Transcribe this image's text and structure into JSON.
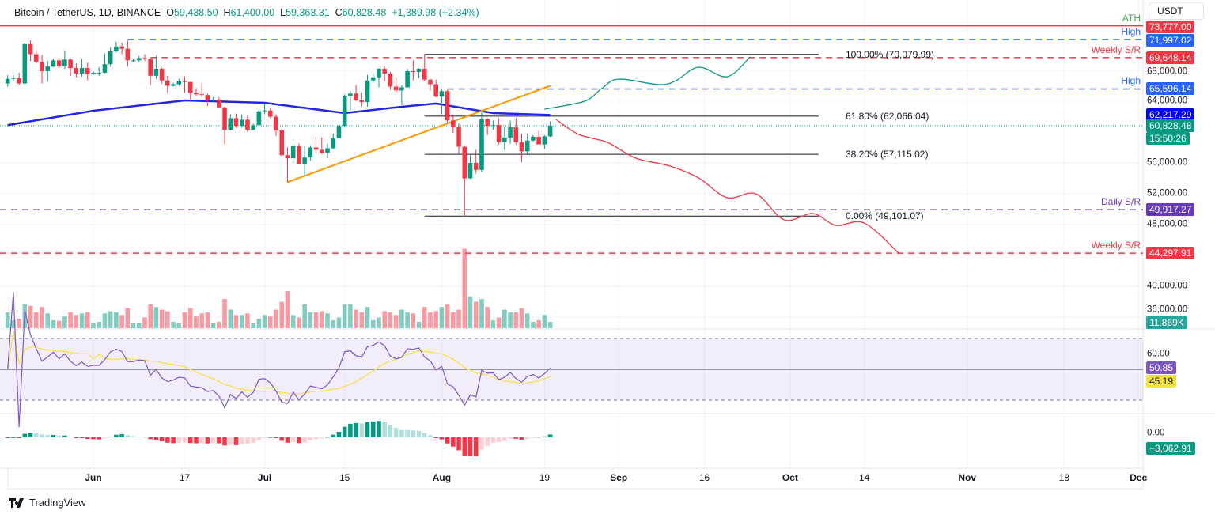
{
  "header": {
    "symbol": "Bitcoin / TetherUS, 1D, BINANCE",
    "o_label": "O",
    "o": "59,438.50",
    "h_label": "H",
    "h": "61,400.00",
    "l_label": "L",
    "l": "59,363.31",
    "c_label": "C",
    "c": "60,828.48",
    "change": "+1,389.98 (+2.34%)"
  },
  "currency_button": "USDT",
  "footer": {
    "brand": "TradingView"
  },
  "colors": {
    "up": "#089981",
    "down": "#f23645",
    "ma": "#2424e6",
    "rsi": "#7e57c2",
    "rsi_ma": "#f5e23b",
    "trend": "#ff9800",
    "bull_path": "#089981",
    "bear_path": "#f23645",
    "daily_sr": "#673ab7",
    "high": "#2962ff"
  },
  "axis_labels": {
    "price": [
      "68,000.00",
      "64,000.00",
      "56,000.00",
      "52,000.00",
      "48,000.00",
      "40,000.00",
      "36,000.00"
    ],
    "rsi": "60.00",
    "macd": "0.00"
  },
  "tags": {
    "ath": "73,777.00",
    "high1": "71,997.02",
    "weekly1": "69,648.14",
    "high2": "65,596.14",
    "ma": "62,217.29",
    "last": "60,828.48",
    "countdown": "15:50:26",
    "daily_sr": "49,917.27",
    "weekly2": "44,297.91",
    "volume": "11.869K",
    "rsi": "50.85",
    "rsi_ma": "45.19",
    "macd": "−3,062.91"
  },
  "level_labels": {
    "ath": "ATH",
    "high1": "High",
    "weekly1": "Weekly S/R",
    "high2": "High",
    "daily_sr": "Daily S/R",
    "weekly2": "Weekly S/R"
  },
  "fib_labels": {
    "f100": "100.00% (70,079.99)",
    "f618": "61.80% (62,066.04)",
    "f382": "38.20% (57,115.02)",
    "f0": "0.00% (49,101.07)"
  },
  "time_labels": [
    {
      "t": "Jun",
      "d": "2024-06-01",
      "b": true
    },
    {
      "t": "17",
      "d": "2024-06-17"
    },
    {
      "t": "Jul",
      "d": "2024-07-01",
      "b": true
    },
    {
      "t": "15",
      "d": "2024-07-15"
    },
    {
      "t": "Aug",
      "d": "2024-08-01",
      "b": true
    },
    {
      "t": "19",
      "d": "2024-08-19"
    },
    {
      "t": "Sep",
      "d": "2024-09-01",
      "b": true
    },
    {
      "t": "16",
      "d": "2024-09-16"
    },
    {
      "t": "Oct",
      "d": "2024-10-01",
      "b": true
    },
    {
      "t": "14",
      "d": "2024-10-14"
    },
    {
      "t": "Nov",
      "d": "2024-11-01",
      "b": true
    },
    {
      "t": "18",
      "d": "2024-11-18"
    },
    {
      "t": "Dec",
      "d": "2024-12-01",
      "b": true
    }
  ],
  "chart_data": {
    "type": "candlestick",
    "price_ticks": [
      68000,
      64000,
      56000,
      52000,
      48000,
      40000,
      36000
    ],
    "levels": {
      "ath": 73777,
      "high1": 71997.02,
      "weekly1": 69648.14,
      "high2": 65596.14,
      "daily_sr": 49917.27,
      "weekly2": 44297.91,
      "ma_last": 62217.29,
      "last": 60828.48
    },
    "fib": {
      "from": "2024-07-29",
      "to": "2024-10-06",
      "levels": [
        70079.99,
        62066.04,
        57115.02,
        49101.07
      ]
    },
    "trendline": [
      [
        "2024-07-05",
        53500
      ],
      [
        "2024-08-20",
        66000
      ]
    ],
    "ma": [
      [
        "2024-05-17",
        60900
      ],
      [
        "2024-06-01",
        62770
      ],
      [
        "2024-06-17",
        64100
      ],
      [
        "2024-07-01",
        63800
      ],
      [
        "2024-07-15",
        62460
      ],
      [
        "2024-07-25",
        63280
      ],
      [
        "2024-07-31",
        63700
      ],
      [
        "2024-08-10",
        62460
      ],
      [
        "2024-08-20",
        62217
      ]
    ],
    "bull_projection": [
      [
        "2024-08-19",
        62974
      ],
      [
        "2024-08-26",
        64000
      ],
      [
        "2024-08-29",
        65641
      ],
      [
        "2024-09-01",
        66872
      ],
      [
        "2024-09-08",
        66154
      ],
      [
        "2024-09-11",
        66667
      ],
      [
        "2024-09-15",
        68410
      ],
      [
        "2024-09-20",
        67180
      ],
      [
        "2024-09-24",
        69744
      ]
    ],
    "bear_projection": [
      [
        "2024-08-21",
        61640
      ],
      [
        "2024-08-25",
        59690
      ],
      [
        "2024-08-30",
        58670
      ],
      [
        "2024-09-04",
        56615
      ],
      [
        "2024-09-10",
        55590
      ],
      [
        "2024-09-15",
        54050
      ],
      [
        "2024-09-20",
        51490
      ],
      [
        "2024-09-25",
        52000
      ],
      [
        "2024-09-30",
        48615
      ],
      [
        "2024-10-05",
        49440
      ],
      [
        "2024-10-09",
        47900
      ],
      [
        "2024-10-14",
        48200
      ],
      [
        "2024-10-20",
        44300
      ]
    ],
    "rsi_levels": [
      70,
      50,
      30
    ],
    "candles_columns": [
      "date",
      "open",
      "high",
      "low",
      "close",
      "volume_k"
    ],
    "candles": [
      [
        "2024-05-17",
        66300,
        67400,
        65900,
        66900,
        30
      ],
      [
        "2024-05-18",
        66900,
        67400,
        66600,
        67000,
        15
      ],
      [
        "2024-05-19",
        67000,
        67700,
        66100,
        66300,
        18
      ],
      [
        "2024-05-20",
        66300,
        71500,
        66000,
        71400,
        45
      ],
      [
        "2024-05-21",
        71400,
        71900,
        69200,
        70100,
        42
      ],
      [
        "2024-05-22",
        70100,
        70600,
        68900,
        69100,
        30
      ],
      [
        "2024-05-23",
        69100,
        70000,
        66300,
        67900,
        40
      ],
      [
        "2024-05-24",
        67900,
        69200,
        66600,
        68500,
        28
      ],
      [
        "2024-05-25",
        68500,
        69500,
        68400,
        69300,
        15
      ],
      [
        "2024-05-26",
        69300,
        69600,
        68200,
        68500,
        14
      ],
      [
        "2024-05-27",
        68500,
        70600,
        68200,
        69400,
        22
      ],
      [
        "2024-05-28",
        69400,
        69600,
        67300,
        68300,
        30
      ],
      [
        "2024-05-29",
        68300,
        68900,
        67100,
        67600,
        25
      ],
      [
        "2024-05-30",
        67600,
        69500,
        67200,
        68300,
        28
      ],
      [
        "2024-05-31",
        68300,
        69000,
        66700,
        67500,
        30
      ],
      [
        "2024-06-01",
        67500,
        67900,
        67400,
        67700,
        10
      ],
      [
        "2024-06-02",
        67700,
        68400,
        67300,
        67700,
        12
      ],
      [
        "2024-06-03",
        67700,
        70200,
        67600,
        68800,
        28
      ],
      [
        "2024-06-04",
        68800,
        71000,
        68500,
        70500,
        32
      ],
      [
        "2024-06-05",
        70500,
        71700,
        70300,
        71100,
        30
      ],
      [
        "2024-06-06",
        71100,
        71600,
        70100,
        70800,
        25
      ],
      [
        "2024-06-07",
        70800,
        71900,
        68500,
        69300,
        38
      ],
      [
        "2024-06-08",
        69300,
        69500,
        69100,
        69300,
        10
      ],
      [
        "2024-06-09",
        69300,
        69900,
        69100,
        69600,
        10
      ],
      [
        "2024-06-10",
        69600,
        70100,
        69200,
        69500,
        20
      ],
      [
        "2024-06-11",
        69500,
        69600,
        66100,
        67300,
        45
      ],
      [
        "2024-06-12",
        67300,
        69900,
        66900,
        68200,
        40
      ],
      [
        "2024-06-13",
        68200,
        68400,
        66300,
        66700,
        35
      ],
      [
        "2024-06-14",
        66700,
        67300,
        65100,
        66000,
        32
      ],
      [
        "2024-06-15",
        66000,
        66400,
        65900,
        66200,
        12
      ],
      [
        "2024-06-16",
        66200,
        66900,
        66000,
        66600,
        10
      ],
      [
        "2024-06-17",
        66600,
        67200,
        65100,
        66500,
        30
      ],
      [
        "2024-06-18",
        66500,
        66500,
        64100,
        65100,
        38
      ],
      [
        "2024-06-19",
        65100,
        65700,
        64700,
        64900,
        22
      ],
      [
        "2024-06-20",
        64900,
        66400,
        64500,
        64800,
        28
      ],
      [
        "2024-06-21",
        64800,
        65000,
        63400,
        64100,
        30
      ],
      [
        "2024-06-22",
        64100,
        64500,
        63900,
        64200,
        10
      ],
      [
        "2024-06-23",
        64200,
        64500,
        63200,
        63200,
        12
      ],
      [
        "2024-06-24",
        63200,
        63300,
        58400,
        60300,
        55
      ],
      [
        "2024-06-25",
        60300,
        62300,
        60200,
        61800,
        35
      ],
      [
        "2024-06-26",
        61800,
        62400,
        60600,
        60800,
        25
      ],
      [
        "2024-06-27",
        60800,
        62300,
        60600,
        61600,
        25
      ],
      [
        "2024-06-28",
        61600,
        62200,
        60000,
        60300,
        28
      ],
      [
        "2024-06-29",
        60300,
        61100,
        60300,
        60900,
        10
      ],
      [
        "2024-06-30",
        60900,
        62900,
        60700,
        62700,
        18
      ],
      [
        "2024-07-01",
        62700,
        63800,
        62300,
        62800,
        25
      ],
      [
        "2024-07-02",
        62800,
        63200,
        61800,
        62000,
        22
      ],
      [
        "2024-07-03",
        62000,
        62300,
        59500,
        60200,
        35
      ],
      [
        "2024-07-04",
        60200,
        60500,
        56800,
        57000,
        50
      ],
      [
        "2024-07-05",
        57000,
        58000,
        53500,
        56600,
        70
      ],
      [
        "2024-07-06",
        56600,
        58500,
        56000,
        58200,
        25
      ],
      [
        "2024-07-07",
        58200,
        58500,
        55800,
        55800,
        20
      ],
      [
        "2024-07-08",
        55800,
        58200,
        54300,
        56700,
        45
      ],
      [
        "2024-07-09",
        56700,
        58300,
        56300,
        58000,
        30
      ],
      [
        "2024-07-10",
        58000,
        59400,
        57200,
        57700,
        30
      ],
      [
        "2024-07-11",
        57700,
        59300,
        57100,
        57300,
        32
      ],
      [
        "2024-07-12",
        57300,
        58500,
        56600,
        57900,
        28
      ],
      [
        "2024-07-13",
        57900,
        59800,
        57800,
        59200,
        15
      ],
      [
        "2024-07-14",
        59200,
        61400,
        59200,
        60800,
        20
      ],
      [
        "2024-07-15",
        60800,
        64900,
        60700,
        64700,
        45
      ],
      [
        "2024-07-16",
        64700,
        65300,
        62800,
        65000,
        45
      ],
      [
        "2024-07-17",
        65000,
        66100,
        64000,
        64100,
        35
      ],
      [
        "2024-07-18",
        64100,
        65100,
        63300,
        63900,
        30
      ],
      [
        "2024-07-19",
        63900,
        67400,
        63300,
        66700,
        40
      ],
      [
        "2024-07-20",
        66700,
        67600,
        66400,
        67100,
        15
      ],
      [
        "2024-07-21",
        67100,
        68300,
        65800,
        68200,
        20
      ],
      [
        "2024-07-22",
        68200,
        68500,
        66600,
        67600,
        32
      ],
      [
        "2024-07-23",
        67600,
        67800,
        65500,
        65900,
        30
      ],
      [
        "2024-07-24",
        65900,
        67100,
        65200,
        65400,
        25
      ],
      [
        "2024-07-25",
        65400,
        66100,
        63500,
        65800,
        35
      ],
      [
        "2024-07-26",
        65800,
        68200,
        65800,
        67900,
        30
      ],
      [
        "2024-07-27",
        67900,
        69300,
        66700,
        67800,
        28
      ],
      [
        "2024-07-28",
        67800,
        68300,
        67000,
        68200,
        12
      ],
      [
        "2024-07-29",
        68200,
        70080,
        66600,
        66800,
        40
      ],
      [
        "2024-07-30",
        66800,
        66900,
        65400,
        66200,
        30
      ],
      [
        "2024-07-31",
        66200,
        66800,
        64500,
        64600,
        32
      ],
      [
        "2024-08-01",
        64600,
        65600,
        62300,
        65300,
        40
      ],
      [
        "2024-08-02",
        65300,
        65500,
        61100,
        61500,
        45
      ],
      [
        "2024-08-03",
        61500,
        62200,
        59900,
        60700,
        30
      ],
      [
        "2024-08-04",
        60700,
        61100,
        57200,
        58100,
        35
      ],
      [
        "2024-08-05",
        58100,
        58300,
        49101,
        54000,
        150
      ],
      [
        "2024-08-06",
        54000,
        57000,
        53900,
        56000,
        60
      ],
      [
        "2024-08-07",
        56000,
        57700,
        54600,
        55100,
        50
      ],
      [
        "2024-08-08",
        55100,
        62700,
        54800,
        61700,
        55
      ],
      [
        "2024-08-09",
        61700,
        61800,
        59600,
        60800,
        40
      ],
      [
        "2024-08-10",
        60800,
        61500,
        60300,
        60900,
        15
      ],
      [
        "2024-08-11",
        60900,
        61800,
        58400,
        58700,
        20
      ],
      [
        "2024-08-12",
        58700,
        60700,
        57700,
        59300,
        35
      ],
      [
        "2024-08-13",
        59300,
        61500,
        58500,
        60600,
        30
      ],
      [
        "2024-08-14",
        60600,
        61800,
        58400,
        58700,
        30
      ],
      [
        "2024-08-15",
        58700,
        59800,
        56100,
        57500,
        38
      ],
      [
        "2024-08-16",
        57500,
        59800,
        57100,
        58900,
        28
      ],
      [
        "2024-08-17",
        58900,
        59600,
        58800,
        59400,
        12
      ],
      [
        "2024-08-18",
        59400,
        60200,
        58400,
        58400,
        15
      ],
      [
        "2024-08-19",
        58400,
        59600,
        57800,
        59438.5,
        25
      ],
      [
        "2024-08-20",
        59438.5,
        61400,
        59363.31,
        60828.48,
        11.869
      ]
    ]
  }
}
